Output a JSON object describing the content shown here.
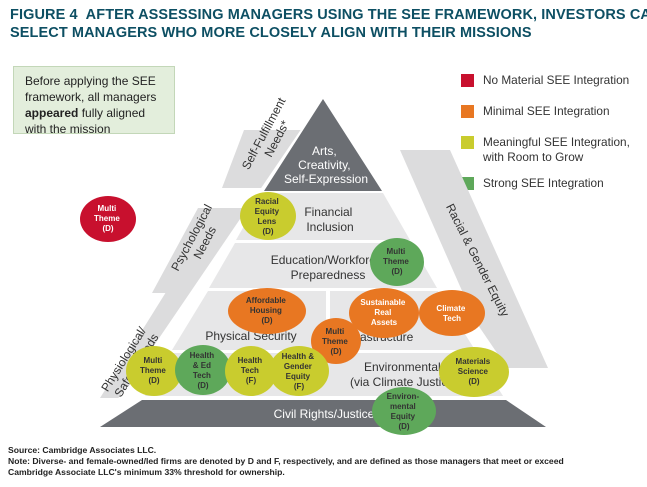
{
  "title": {
    "figure_label": "FIGURE 4",
    "line1": "AFTER ASSESSING MANAGERS USING THE SEE FRAMEWORK, INVESTORS CAN",
    "line2": "SELECT MANAGERS WHO MORE CLOSELY ALIGN WITH THEIR MISSIONS"
  },
  "note_box": {
    "text_before": "Before applying the SEE framework, all managers ",
    "emphasis": "appeared",
    "text_after": " fully aligned with the mission"
  },
  "legend": [
    {
      "label": "No Material SEE Integration",
      "color": "#c8102e"
    },
    {
      "label": "Minimal SEE Integration",
      "color": "#e87722"
    },
    {
      "label": "Meaningful SEE Integration, with Room to Grow",
      "color": "#c9cc2e"
    },
    {
      "label": "Strong SEE Integration",
      "color": "#5ea85a"
    }
  ],
  "side_labels": {
    "self_fulfillment": [
      "Self-Fulfillment",
      "Needs*"
    ],
    "psychological": [
      "Psychological",
      "Needs"
    ],
    "physiological": [
      "Physiological/",
      "Safety Needs"
    ],
    "racial_gender": "Racial & Gender Equity"
  },
  "pyramid": {
    "apex": [
      "Arts,",
      "Creativity,",
      "Self-Expression"
    ],
    "financial": [
      "Financial",
      "Inclusion"
    ],
    "education": [
      "Education/Workforce",
      "Preparedness"
    ],
    "physical_security": "Physical Security",
    "infrastructure": "Infrastructure",
    "environmental": [
      "Environmental",
      "(via Climate Justice)"
    ],
    "civil_rights": "Civil Rights/Justice"
  },
  "circles": {
    "multi_theme_red": [
      "Multi",
      "Theme",
      "(D)"
    ],
    "racial_equity_lens": [
      "Racial",
      "Equity",
      "Lens",
      "(D)"
    ],
    "multi_theme_green": [
      "Multi",
      "Theme",
      "(D)"
    ],
    "affordable_housing": [
      "Affordable",
      "Housing",
      "(D)"
    ],
    "multi_theme_orange": [
      "Multi",
      "Theme",
      "(D)"
    ],
    "sustainable_real_assets": [
      "Sustainable",
      "Real",
      "Assets"
    ],
    "climate_tech": [
      "Climate",
      "Tech"
    ],
    "multi_theme_yellow": [
      "Multi",
      "Theme",
      "(D)"
    ],
    "health_ed_tech": [
      "Health",
      "& Ed",
      "Tech",
      "(D)"
    ],
    "health_tech": [
      "Health",
      "Tech",
      "(F)"
    ],
    "health_gender_equity": [
      "Health &",
      "Gender",
      "Equity",
      "(F)"
    ],
    "materials_science": [
      "Materials",
      "Science",
      "(D)"
    ],
    "environmental_equity": [
      "Environ-",
      "mental",
      "Equity",
      "(D)"
    ]
  },
  "colors": {
    "title": "#0d4f63",
    "red": "#c8102e",
    "orange": "#e87722",
    "yellow": "#c9cc2e",
    "green": "#5ea85a",
    "pyramid_dark": "#6b6e73",
    "pyramid_light": "#e7e7e8",
    "arrow_gray": "#dcdcdd",
    "note_bg": "#e3eedc"
  },
  "footer": {
    "source": "Source: Cambridge Associates LLC.",
    "note_line1": "Note: Diverse- and female-owned/led firms are denoted by D and F, respectively, and are defined as those managers that meet or exceed",
    "note_line2": "Cambridge Associate LLC's minimum 33% threshold for ownership."
  }
}
